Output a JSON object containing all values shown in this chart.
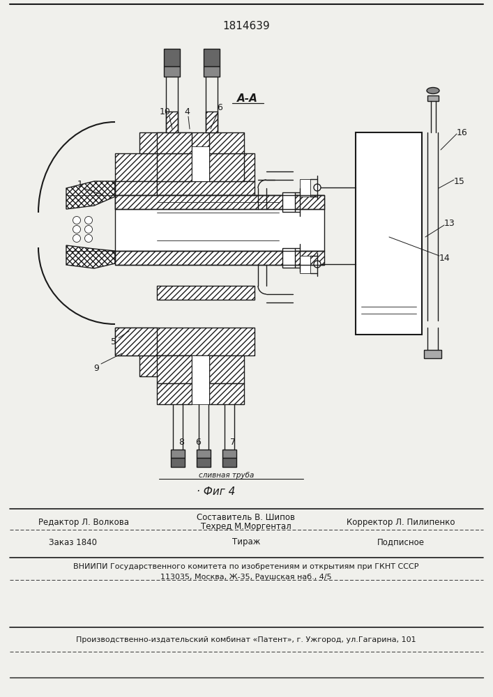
{
  "patent_number": "1814639",
  "fig_label": "Фиг 4",
  "section_label": "А-А",
  "bg_color": "#f0f0ec",
  "line_color": "#1a1a1a",
  "footer": {
    "editor": "Редактор Л. Волкова",
    "compiler": "Составитель В. Шипов",
    "techred": "Техред М.Моргентал",
    "corrector": "Корректор Л. Пилипенко",
    "order": "Заказ 1840",
    "tirazh": "Тираж",
    "podpisnoe": "Подписное",
    "vniiipi": "ВНИИПИ Государственного комитета по изобретениям и открытиям при ГКНТ СССР",
    "address": "113035, Москва, Ж-35, Раушская наб., 4/5",
    "publisher": "Производственно-издательский комбинат «Патент», г. Ужгород, ул.Гагарина, 101"
  }
}
